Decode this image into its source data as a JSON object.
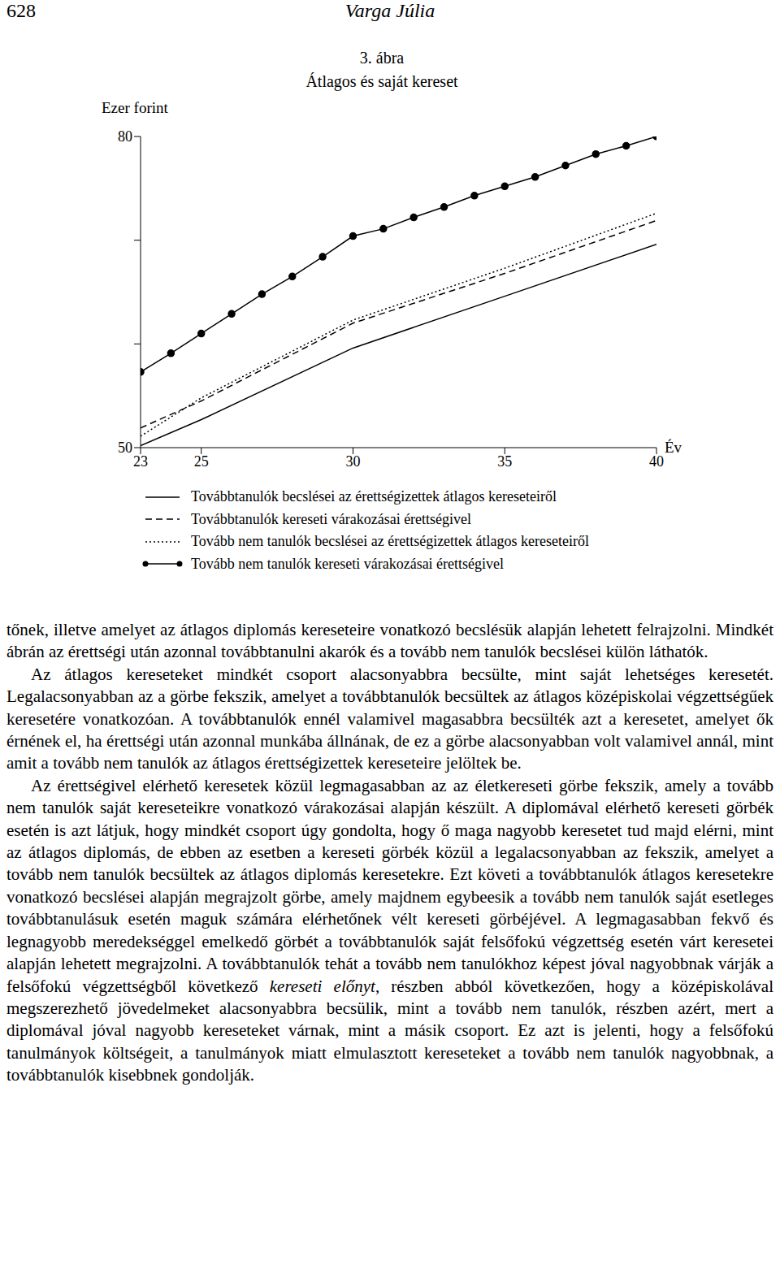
{
  "header": {
    "page": "628",
    "author": "Varga Júlia"
  },
  "chart_data": {
    "type": "line",
    "title": "3. ábra",
    "subtitle": "Átlagos és saját kereset",
    "y_label": "Ezer forint",
    "x_label": "Év",
    "xlim": [
      23,
      40
    ],
    "xticks": [
      23,
      25,
      30,
      35,
      40
    ],
    "ylim": [
      50,
      80
    ],
    "yticks": [
      50,
      {
        "value": 60,
        "label": null
      },
      {
        "value": 70,
        "label": null
      },
      80
    ],
    "series": [
      {
        "name": "Továbbtanulók becslései az érettségizettek átlagos kereseteiről",
        "color": "#000000",
        "line_style": "solid",
        "marker": "none",
        "x": [
          23,
          25,
          30,
          35,
          40
        ],
        "values": [
          50.2,
          52.7,
          59.6,
          64.6,
          69.6
        ]
      },
      {
        "name": "Továbbtanulók kereseti várakozásai érettségivel",
        "color": "#000000",
        "line_style": "dashed",
        "marker": "none",
        "x": [
          23,
          25,
          30,
          35,
          40
        ],
        "values": [
          51.9,
          54.5,
          62.0,
          66.8,
          71.9
        ]
      },
      {
        "name": "Tovább nem tanulók becslései az érettségizettek átlagos kereseteiről",
        "color": "#000000",
        "line_style": "dotted",
        "marker": "none",
        "x": [
          23,
          25,
          30,
          35,
          40
        ],
        "values": [
          51.1,
          54.8,
          62.3,
          67.3,
          72.6
        ]
      },
      {
        "name": "Tovább nem tanulók kereseti várakozásai érettségivel",
        "color": "#000000",
        "line_style": "solid",
        "marker": "circle",
        "x": [
          23,
          24,
          25,
          26,
          27,
          28,
          29,
          30,
          31,
          32,
          33,
          34,
          35,
          36,
          37,
          38,
          39,
          40
        ],
        "values": [
          57.3,
          59.1,
          61.0,
          62.9,
          64.8,
          66.5,
          68.4,
          70.4,
          71.1,
          72.2,
          73.2,
          74.3,
          75.2,
          76.1,
          77.2,
          78.3,
          79.1,
          80.0
        ]
      }
    ]
  },
  "body": [
    [
      {
        "text": "tőnek, illetve amelyet az átlagos diplomás kereseteire vonatkozó becslésük alapján lehetett felrajzolni. Mindkét ábrán az érettségi után azonnal továbbtanulni akarók és a tovább nem tanulók becslései külön láthatók."
      }
    ],
    [
      {
        "text": "Az átlagos kereseteket mindkét csoport alacsonyabbra becsülte, mint saját lehetséges keresetét. Legalacsonyabban az a görbe fekszik, amelyet a továbbtanulók becsültek az átlagos középiskolai végzettségűek keresetére vonatkozóan. A továbbtanulók ennél valamivel magasabbra becsülték azt a keresetet, amelyet ők érnének el, ha érettségi után azonnal munkába állnának, de ez a görbe alacsonyabban volt valamivel annál, mint amit a tovább nem tanulók az átlagos érettségizettek kereseteire jelöltek be."
      }
    ],
    [
      {
        "text": "Az érettségivel elérhető keresetek közül legmagasabban az az életkereseti görbe fekszik, amely a tovább nem tanulók saját kereseteikre vonatkozó várakozásai alapján készült. A diplomával elérhető kereseti görbék esetén is azt látjuk, hogy mindkét csoport úgy gondolta, hogy ő maga nagyobb keresetet tud majd elérni, mint az átlagos diplomás, de ebben az esetben a kereseti görbék közül a legalacsonyabban az fekszik, amelyet a tovább nem tanulók becsültek az átlagos diplomás keresetekre. Ezt követi a továbbtanulók átlagos keresetekre vonatkozó becslései alapján megrajzolt görbe, amely majdnem egybeesik a tovább nem tanulók saját esetleges továbbtanulásuk esetén maguk számára elérhetőnek vélt kereseti görbéjével. A legmagasabban fekvő és legnagyobb meredekséggel emelkedő görbét a továbbtanulók saját felsőfokú végzettség esetén várt keresetei alapján lehetett megrajzolni. A továbbtanulók tehát a tovább nem tanulókhoz képest jóval nagyobbnak várják a felsőfokú végzettségből következő "
      },
      {
        "text": "kereseti előnyt",
        "italic": true
      },
      {
        "text": ", részben abból következően, hogy a középiskolával megszerezhető jövedelmeket alacsonyabbra becsülik, mint a tovább nem tanulók, részben azért, mert a diplomával jóval nagyobb kereseteket várnak, mint a másik csoport. Ez azt is jelenti, hogy a felsőfokú tanulmányok költségeit, a tanulmányok miatt elmulasztott kereseteket a tovább nem tanulók nagyobbnak, a továbbtanulók kisebbnek gondolják."
      }
    ]
  ]
}
